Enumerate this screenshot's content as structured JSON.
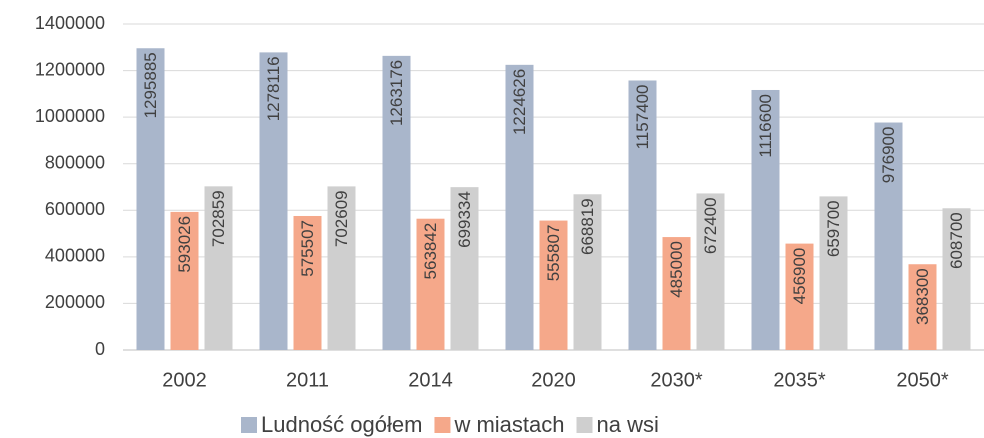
{
  "chart_data": {
    "type": "bar",
    "categories": [
      "2002",
      "2011",
      "2014",
      "2020",
      "2030*",
      "2035*",
      "2050*"
    ],
    "series": [
      {
        "name": "Ludność ogółem",
        "color": "#a9b6cb",
        "values": [
          1295885,
          1278116,
          1263176,
          1224626,
          1157400,
          1116600,
          976900
        ]
      },
      {
        "name": "w miastach",
        "color": "#f5a88a",
        "values": [
          593026,
          575507,
          563842,
          555807,
          485000,
          456900,
          368300
        ]
      },
      {
        "name": "na wsi",
        "color": "#cfcfcf",
        "values": [
          702859,
          702609,
          699334,
          668819,
          672400,
          659700,
          608700
        ]
      }
    ],
    "ylim": [
      0,
      1400000
    ],
    "yticks": [
      0,
      200000,
      400000,
      600000,
      800000,
      1000000,
      1200000,
      1400000
    ],
    "grid": true,
    "legend": "bottom"
  }
}
